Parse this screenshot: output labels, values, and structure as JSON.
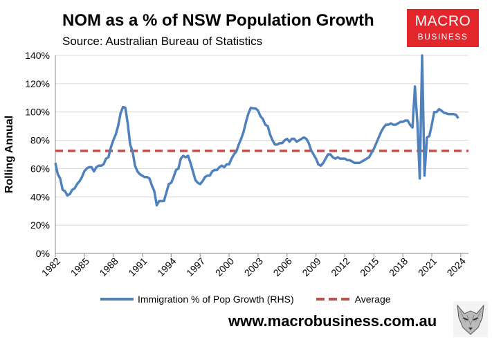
{
  "header": {
    "title": "NOM as a % of NSW Population Growth",
    "subtitle": "Source: Australian Bureau of Statistics",
    "logo_line1": "MACRO",
    "logo_line2": "BUSINESS",
    "url": "www.macrobusiness.com.au"
  },
  "colors": {
    "series": "#4f81bd",
    "average": "#c0504d",
    "logo": "#e3262c"
  },
  "chart_data": {
    "type": "line",
    "title": "NOM as a % of NSW Population Growth",
    "ylabel": "Rolling Annual",
    "xlabel": "",
    "xlim": [
      1982,
      2024.8
    ],
    "ylim": [
      0,
      140
    ],
    "yticks": [
      0,
      20,
      40,
      60,
      80,
      100,
      120,
      140
    ],
    "ytick_labels": [
      "0%",
      "20%",
      "40%",
      "60%",
      "80%",
      "100%",
      "120%",
      "140%"
    ],
    "xticks": [
      1982,
      1985,
      1988,
      1991,
      1994,
      1997,
      2000,
      2003,
      2006,
      2009,
      2012,
      2015,
      2018,
      2021,
      2024
    ],
    "xtick_labels": [
      "1982",
      "1985",
      "1988",
      "1991",
      "1994",
      "1997",
      "2000",
      "2003",
      "2006",
      "2009",
      "2012",
      "2015",
      "2018",
      "2021",
      "2024"
    ],
    "legend": [
      "Immigration % of Pop Growth (RHS)",
      "Average"
    ],
    "series": [
      {
        "name": "Immigration % of Pop Growth (RHS)",
        "points": [
          [
            1982.0,
            64
          ],
          [
            1982.25,
            56
          ],
          [
            1982.5,
            53
          ],
          [
            1982.75,
            45
          ],
          [
            1983.0,
            44
          ],
          [
            1983.25,
            41
          ],
          [
            1983.5,
            42
          ],
          [
            1983.75,
            45
          ],
          [
            1984.0,
            46
          ],
          [
            1984.25,
            49
          ],
          [
            1984.5,
            51
          ],
          [
            1984.75,
            54
          ],
          [
            1985.0,
            58
          ],
          [
            1985.25,
            60
          ],
          [
            1985.5,
            61
          ],
          [
            1985.75,
            61
          ],
          [
            1986.0,
            58
          ],
          [
            1986.25,
            61
          ],
          [
            1986.5,
            62
          ],
          [
            1986.75,
            62
          ],
          [
            1987.0,
            63
          ],
          [
            1987.25,
            67
          ],
          [
            1987.5,
            68
          ],
          [
            1987.75,
            75
          ],
          [
            1988.0,
            80
          ],
          [
            1988.25,
            84
          ],
          [
            1988.5,
            90
          ],
          [
            1988.75,
            99
          ],
          [
            1989.0,
            103.5
          ],
          [
            1989.25,
            103
          ],
          [
            1989.5,
            92
          ],
          [
            1989.75,
            77
          ],
          [
            1990.0,
            72
          ],
          [
            1990.25,
            62
          ],
          [
            1990.5,
            58
          ],
          [
            1990.75,
            56
          ],
          [
            1991.0,
            55
          ],
          [
            1991.25,
            54
          ],
          [
            1991.5,
            54
          ],
          [
            1991.75,
            53
          ],
          [
            1992.0,
            48
          ],
          [
            1992.25,
            44
          ],
          [
            1992.5,
            34
          ],
          [
            1992.75,
            37
          ],
          [
            1993.0,
            37
          ],
          [
            1993.25,
            37
          ],
          [
            1993.5,
            43
          ],
          [
            1993.75,
            49
          ],
          [
            1994.0,
            50
          ],
          [
            1994.25,
            54
          ],
          [
            1994.5,
            59
          ],
          [
            1994.75,
            60
          ],
          [
            1995.0,
            67
          ],
          [
            1995.25,
            69
          ],
          [
            1995.5,
            68
          ],
          [
            1995.75,
            69
          ],
          [
            1996.0,
            64
          ],
          [
            1996.25,
            58
          ],
          [
            1996.5,
            52
          ],
          [
            1996.75,
            50
          ],
          [
            1997.0,
            49
          ],
          [
            1997.25,
            51
          ],
          [
            1997.5,
            54
          ],
          [
            1997.75,
            55
          ],
          [
            1998.0,
            55
          ],
          [
            1998.25,
            58
          ],
          [
            1998.5,
            59
          ],
          [
            1998.75,
            59
          ],
          [
            1999.0,
            61
          ],
          [
            1999.25,
            62
          ],
          [
            1999.5,
            61
          ],
          [
            1999.75,
            63
          ],
          [
            2000.0,
            63
          ],
          [
            2000.25,
            67
          ],
          [
            2000.5,
            70
          ],
          [
            2000.75,
            72
          ],
          [
            2001.0,
            77
          ],
          [
            2001.25,
            81
          ],
          [
            2001.5,
            86
          ],
          [
            2001.75,
            93
          ],
          [
            2002.0,
            99
          ],
          [
            2002.25,
            103
          ],
          [
            2002.5,
            102.5
          ],
          [
            2002.75,
            102.5
          ],
          [
            2003.0,
            101
          ],
          [
            2003.25,
            97
          ],
          [
            2003.5,
            95
          ],
          [
            2003.75,
            91
          ],
          [
            2004.0,
            90
          ],
          [
            2004.25,
            84
          ],
          [
            2004.5,
            80
          ],
          [
            2004.75,
            77
          ],
          [
            2005.0,
            77
          ],
          [
            2005.25,
            78
          ],
          [
            2005.5,
            78
          ],
          [
            2005.75,
            80
          ],
          [
            2006.0,
            81
          ],
          [
            2006.25,
            79
          ],
          [
            2006.5,
            81
          ],
          [
            2006.75,
            81
          ],
          [
            2007.0,
            79
          ],
          [
            2007.25,
            80
          ],
          [
            2007.5,
            81
          ],
          [
            2007.75,
            82
          ],
          [
            2008.0,
            81
          ],
          [
            2008.25,
            78
          ],
          [
            2008.5,
            73
          ],
          [
            2008.75,
            70
          ],
          [
            2009.0,
            67
          ],
          [
            2009.25,
            63
          ],
          [
            2009.5,
            62
          ],
          [
            2009.75,
            64
          ],
          [
            2010.0,
            67
          ],
          [
            2010.25,
            70
          ],
          [
            2010.5,
            70
          ],
          [
            2010.75,
            68
          ],
          [
            2011.0,
            67
          ],
          [
            2011.25,
            68
          ],
          [
            2011.5,
            67
          ],
          [
            2011.75,
            67
          ],
          [
            2012.0,
            67
          ],
          [
            2012.25,
            66
          ],
          [
            2012.5,
            66
          ],
          [
            2012.75,
            65
          ],
          [
            2013.0,
            64
          ],
          [
            2013.25,
            64
          ],
          [
            2013.5,
            64
          ],
          [
            2013.75,
            65
          ],
          [
            2014.0,
            66
          ],
          [
            2014.25,
            67
          ],
          [
            2014.5,
            68
          ],
          [
            2014.75,
            71
          ],
          [
            2015.0,
            74
          ],
          [
            2015.25,
            78
          ],
          [
            2015.5,
            82
          ],
          [
            2015.75,
            86
          ],
          [
            2016.0,
            89
          ],
          [
            2016.25,
            91
          ],
          [
            2016.5,
            91
          ],
          [
            2016.75,
            92
          ],
          [
            2017.0,
            91
          ],
          [
            2017.25,
            91
          ],
          [
            2017.5,
            92
          ],
          [
            2017.75,
            93
          ],
          [
            2018.0,
            93
          ],
          [
            2018.25,
            94
          ],
          [
            2018.5,
            94
          ],
          [
            2018.75,
            91
          ],
          [
            2019.0,
            89
          ],
          [
            2019.25,
            118
          ],
          [
            2019.5,
            93
          ],
          [
            2019.75,
            53
          ],
          [
            2020.0,
            140
          ],
          [
            2020.25,
            55
          ],
          [
            2020.5,
            82
          ],
          [
            2020.75,
            83
          ],
          [
            2021.0,
            91
          ],
          [
            2021.25,
            100
          ],
          [
            2021.5,
            100
          ],
          [
            2021.75,
            102
          ],
          [
            2022.0,
            101
          ],
          [
            2022.25,
            99.5
          ],
          [
            2022.5,
            99
          ],
          [
            2022.75,
            98.5
          ],
          [
            2023.0,
            98.5
          ],
          [
            2023.25,
            98.5
          ],
          [
            2023.5,
            98
          ],
          [
            2023.75,
            95.5
          ]
        ]
      },
      {
        "name": "Average",
        "value": 72.5
      }
    ]
  }
}
